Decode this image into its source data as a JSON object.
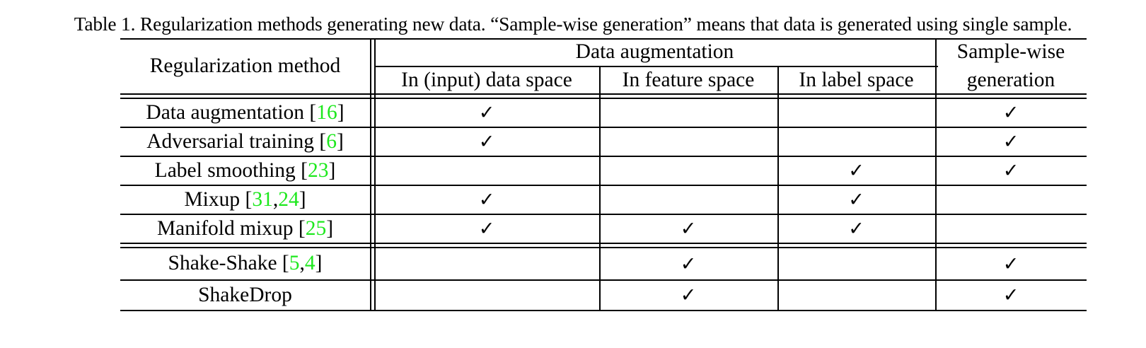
{
  "caption": "Table 1. Regularization methods generating new data. “Sample-wise generation” means that data is generated using single sample.",
  "header": {
    "method": "Regularization method",
    "data_augmentation": "Data augmentation",
    "input_space": "In (input) data space",
    "feature_space": "In feature space",
    "label_space": "In label space",
    "sample_wise_line1": "Sample-wise",
    "sample_wise_line2": "generation"
  },
  "check_mark": "✓",
  "rows": [
    {
      "name": "Data augmentation",
      "refs": [
        "16"
      ],
      "input": true,
      "feature": false,
      "label": false,
      "sample": true
    },
    {
      "name": "Adversarial training",
      "refs": [
        "6"
      ],
      "input": true,
      "feature": false,
      "label": false,
      "sample": true
    },
    {
      "name": "Label smoothing",
      "refs": [
        "23"
      ],
      "input": false,
      "feature": false,
      "label": true,
      "sample": true
    },
    {
      "name": "Mixup",
      "refs": [
        "31",
        "24"
      ],
      "input": true,
      "feature": false,
      "label": true,
      "sample": false
    },
    {
      "name": "Manifold mixup",
      "refs": [
        "25"
      ],
      "input": true,
      "feature": true,
      "label": true,
      "sample": false
    },
    {
      "name": "Shake-Shake",
      "refs": [
        "5",
        "4"
      ],
      "input": false,
      "feature": true,
      "label": false,
      "sample": true
    },
    {
      "name": "ShakeDrop",
      "refs": [],
      "input": false,
      "feature": true,
      "label": false,
      "sample": true
    }
  ]
}
